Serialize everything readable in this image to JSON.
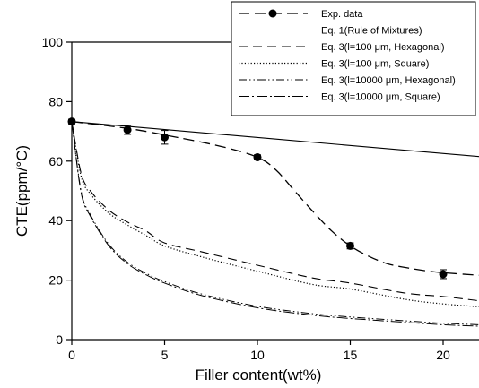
{
  "chart_data": {
    "type": "line",
    "xlabel": "Filler content(wt%)",
    "ylabel": "CTE(ppm/°C)",
    "xlim": [
      0,
      22
    ],
    "ylim": [
      0,
      100
    ],
    "x_ticks": [
      "0",
      "5",
      "10",
      "15",
      "20"
    ],
    "y_ticks": [
      "0",
      "20",
      "40",
      "60",
      "80",
      "100"
    ],
    "grid": false,
    "legend_position": "top-right",
    "series": [
      {
        "name": "Exp. data",
        "style": "dashed-with-markers",
        "x": [
          0,
          3,
          5,
          10,
          15,
          20
        ],
        "values": [
          73.3,
          70.5,
          68.0,
          61.3,
          31.5,
          22.0
        ],
        "error": [
          0.8,
          1.5,
          2.3,
          0.8,
          1.0,
          1.5
        ],
        "fit_x": [
          0,
          3,
          5,
          8,
          10,
          11,
          12,
          13,
          14,
          15,
          16,
          17,
          18,
          19,
          20,
          22
        ],
        "fit_y": [
          73.3,
          71.0,
          68.8,
          65.0,
          61.3,
          57.0,
          50.0,
          43.0,
          36.5,
          31.5,
          28.0,
          25.5,
          24.2,
          23.2,
          22.5,
          21.6
        ]
      },
      {
        "name": "Eq. 1(Rule of Mixtures)",
        "style": "solid",
        "x": [
          0,
          22
        ],
        "values": [
          73.3,
          61.5
        ]
      },
      {
        "name": "Eq. 3(l=100 μm, Hexagonal)",
        "style": "long-dash",
        "x": [
          0,
          0.5,
          1,
          2,
          3,
          4,
          5,
          7,
          10,
          13,
          15,
          18,
          20,
          22
        ],
        "values": [
          73.3,
          56.0,
          50.0,
          43.5,
          39.5,
          36.5,
          32.5,
          29.5,
          25.0,
          20.7,
          19.0,
          15.6,
          14.5,
          13.0
        ]
      },
      {
        "name": "Eq. 3(l=100 μm, Square)",
        "style": "dotted",
        "x": [
          0,
          0.5,
          1,
          2,
          3,
          4,
          5,
          7,
          10,
          13,
          15,
          18,
          20,
          22
        ],
        "values": [
          73.3,
          55.0,
          49.0,
          42.5,
          38.5,
          35.0,
          31.5,
          27.8,
          23.0,
          18.5,
          17.0,
          13.5,
          12.0,
          11.0
        ]
      },
      {
        "name": "Eq. 3(l=10000 μm, Hexagonal)",
        "style": "dash-dot-dot",
        "x": [
          0,
          0.5,
          1,
          2,
          3,
          4,
          5,
          7,
          10,
          13,
          15,
          18,
          20,
          22
        ],
        "values": [
          73.3,
          50.0,
          42.0,
          32.0,
          26.0,
          22.3,
          19.5,
          15.3,
          11.2,
          8.7,
          7.6,
          6.3,
          5.5,
          5.0
        ]
      },
      {
        "name": "Eq. 3(l=10000 μm, Square)",
        "style": "dash-dot",
        "x": [
          0,
          0.5,
          1,
          2,
          3,
          4,
          5,
          7,
          10,
          13,
          15,
          18,
          20,
          22
        ],
        "values": [
          73.3,
          49.5,
          41.5,
          31.5,
          25.5,
          21.8,
          19.0,
          14.8,
          10.7,
          8.2,
          7.1,
          5.8,
          5.0,
          4.5
        ]
      }
    ]
  }
}
